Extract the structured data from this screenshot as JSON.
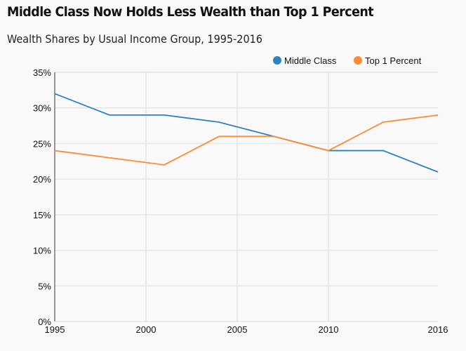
{
  "chart_data": {
    "type": "line",
    "title": "Middle Class Now Holds Less Wealth than Top 1 Percent",
    "subtitle": "Wealth Shares by Usual Income Group, 1995-2016",
    "x": [
      1995,
      1998,
      2001,
      2004,
      2007,
      2010,
      2013,
      2016
    ],
    "series": [
      {
        "name": "Middle Class",
        "color": "#2b83c0",
        "values": [
          32,
          29,
          29,
          28,
          26,
          24,
          24,
          21
        ]
      },
      {
        "name": "Top 1 Percent",
        "color": "#ff8a33",
        "values": [
          24,
          23,
          22,
          26,
          26,
          24,
          28,
          29
        ]
      }
    ],
    "xlim": [
      1995,
      2016
    ],
    "ylim": [
      0,
      35
    ],
    "xticks": [
      "1995",
      "2000",
      "2005",
      "2010",
      "2016"
    ],
    "xtick_values": [
      1995,
      2000,
      2005,
      2010,
      2016
    ],
    "yticks": [
      "0%",
      "5%",
      "10%",
      "15%",
      "20%",
      "25%",
      "30%",
      "35%"
    ],
    "ytick_values": [
      0,
      5,
      10,
      15,
      20,
      25,
      30,
      35
    ],
    "xlabel": "",
    "ylabel": "",
    "grid": true,
    "legend_position": "top-right"
  }
}
